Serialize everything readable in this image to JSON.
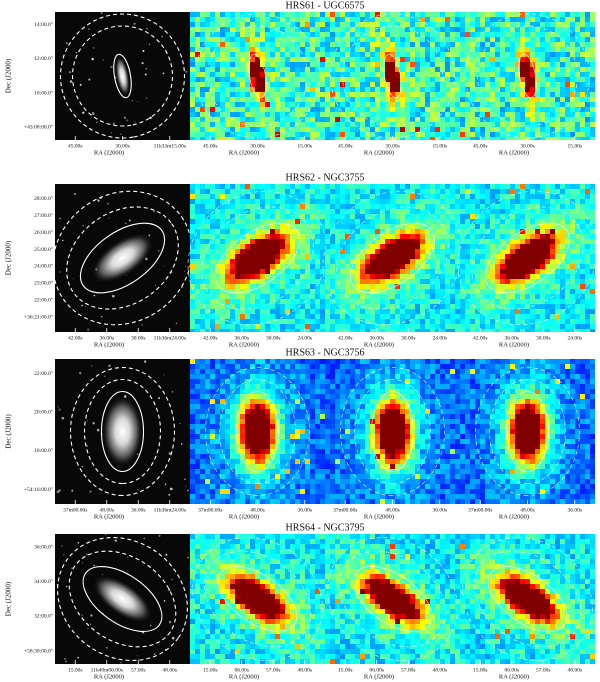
{
  "rows": [
    {
      "title": "HRS61 - UGC6575",
      "y_label": "Dec (J2000)",
      "y_ticks": [
        "14:00.0\"",
        "12:00.0\"",
        "10:00.0\"",
        "+43:08:00.0\""
      ],
      "panels": [
        {
          "x_label": "RA (J2000)",
          "x_ticks": [
            "45.00s",
            "30.00s",
            "11h33m15.00s"
          ]
        },
        {
          "x_label": "RA (J2000)",
          "x_ticks": [
            "45.00s",
            "30.00s",
            "15.00s"
          ]
        },
        {
          "x_label": "RA (J2000)",
          "x_ticks": [
            "45.00s",
            "30.00s",
            "15.00s"
          ]
        },
        {
          "x_label": "RA (J2000)",
          "x_ticks": [
            "45.00s",
            "30.00s",
            "15.00s"
          ]
        }
      ]
    },
    {
      "title": "HRS62 - NGC3755",
      "y_label": "Dec (J2000)",
      "y_ticks": [
        "28:00.0\"",
        "27:00.0\"",
        "26:00.0\"",
        "25:00.0\"",
        "24:00.0\"",
        "23:00.0\"",
        "22:00.0\"",
        "+36:21:00.0\""
      ],
      "panels": [
        {
          "x_label": "RA (J2000)",
          "x_ticks": [
            "42.00s",
            "36.00s",
            "30.00s",
            "11h36m24.00s"
          ]
        },
        {
          "x_label": "RA (J2000)",
          "x_ticks": [
            "42.00s",
            "36.00s",
            "30.00s",
            "24.00s"
          ]
        },
        {
          "x_label": "RA (J2000)",
          "x_ticks": [
            "42.00s",
            "36.00s",
            "30.00s",
            "24.00s"
          ]
        },
        {
          "x_label": "RA (J2000)",
          "x_ticks": [
            "42.00s",
            "36.00s",
            "30.00s",
            "24.00s"
          ]
        }
      ]
    },
    {
      "title": "HRS63 - NGC3756",
      "y_label": "Dec (J2000)",
      "y_ticks": [
        "22:00.0\"",
        "20:00.0\"",
        "18:00.0\"",
        "+54:16:00.0\""
      ],
      "panels": [
        {
          "x_label": "RA (J2000)",
          "x_ticks": [
            "37m00.00s",
            "48.00s",
            "36.00s",
            "11h36m24.00s"
          ]
        },
        {
          "x_label": "RA (J2000)",
          "x_ticks": [
            "37m00.00s",
            "48.00s",
            "36.00s"
          ]
        },
        {
          "x_label": "RA (J2000)",
          "x_ticks": [
            "37m00.00s",
            "48.00s",
            "36.00s"
          ]
        },
        {
          "x_label": "RA (J2000)",
          "x_ticks": [
            "37m00.00s",
            "48.00s",
            "36.00s"
          ]
        }
      ]
    },
    {
      "title": "HRS64 - NGC3795",
      "y_label": "Dec (J2000)",
      "y_ticks": [
        "36:00.0\"",
        "34:00.0\"",
        "32:00.0\"",
        "+58:30:00.0\""
      ],
      "panels": [
        {
          "x_label": "RA (J2000)",
          "x_ticks": [
            "15.00s",
            "11h40m06.00s",
            "57.00s",
            "48.00s"
          ]
        },
        {
          "x_label": "RA (J2000)",
          "x_ticks": [
            "15.00s",
            "06.00s",
            "57.00s",
            "48.00s"
          ]
        },
        {
          "x_label": "RA (J2000)",
          "x_ticks": [
            "15.00s",
            "06.00s",
            "57.00s",
            "48.00s"
          ]
        },
        {
          "x_label": "RA (J2000)",
          "x_ticks": [
            "15.00s",
            "06.00s",
            "57.00s",
            "48.00s"
          ]
        }
      ]
    }
  ]
}
